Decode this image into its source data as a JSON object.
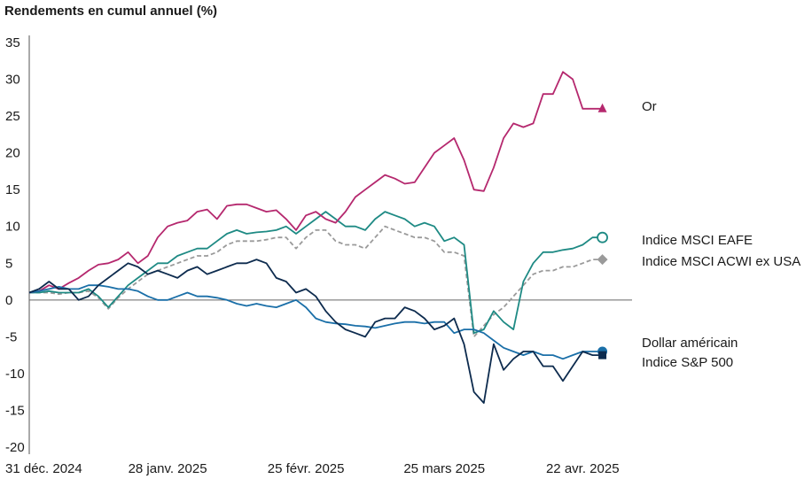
{
  "chart_data": {
    "type": "line",
    "title": "Rendements en cumul annuel (%)",
    "ylim": [
      -20,
      35
    ],
    "yticks": [
      35,
      30,
      25,
      20,
      15,
      10,
      5,
      0,
      -5,
      -10,
      -15,
      -20
    ],
    "xlim": [
      "2024-12-31",
      "2025-05-02"
    ],
    "xticks": [
      {
        "value": "2024-12-31",
        "label": "31 déc. 2024"
      },
      {
        "value": "2025-01-28",
        "label": "28 janv. 2025"
      },
      {
        "value": "2025-02-25",
        "label": "25 févr. 2025"
      },
      {
        "value": "2025-03-25",
        "label": "25 mars 2025"
      },
      {
        "value": "2025-04-22",
        "label": "22 avr. 2025"
      }
    ],
    "series": [
      {
        "name": "Or",
        "color": "#b5286e",
        "dashed": false,
        "marker": "triangle",
        "x": [
          "2024-12-31",
          "2025-01-02",
          "2025-01-04",
          "2025-01-06",
          "2025-01-08",
          "2025-01-10",
          "2025-01-12",
          "2025-01-14",
          "2025-01-16",
          "2025-01-18",
          "2025-01-20",
          "2025-01-22",
          "2025-01-24",
          "2025-01-26",
          "2025-01-28",
          "2025-01-30",
          "2025-02-01",
          "2025-02-03",
          "2025-02-05",
          "2025-02-07",
          "2025-02-09",
          "2025-02-11",
          "2025-02-13",
          "2025-02-15",
          "2025-02-17",
          "2025-02-19",
          "2025-02-21",
          "2025-02-23",
          "2025-02-25",
          "2025-02-27",
          "2025-03-01",
          "2025-03-03",
          "2025-03-05",
          "2025-03-07",
          "2025-03-09",
          "2025-03-11",
          "2025-03-13",
          "2025-03-15",
          "2025-03-17",
          "2025-03-19",
          "2025-03-21",
          "2025-03-23",
          "2025-03-25",
          "2025-03-27",
          "2025-03-29",
          "2025-03-31",
          "2025-04-02",
          "2025-04-04",
          "2025-04-06",
          "2025-04-08",
          "2025-04-10",
          "2025-04-12",
          "2025-04-14",
          "2025-04-16",
          "2025-04-18",
          "2025-04-20",
          "2025-04-22",
          "2025-04-24",
          "2025-04-26"
        ],
        "values": [
          1.0,
          1.2,
          2.0,
          1.5,
          2.3,
          3.0,
          4.0,
          4.8,
          5.0,
          5.5,
          6.5,
          5.0,
          6.0,
          8.5,
          10.0,
          10.5,
          10.8,
          12.0,
          12.3,
          11.0,
          12.8,
          13.0,
          13.0,
          12.5,
          12.0,
          12.2,
          11.0,
          9.5,
          11.5,
          12.0,
          11.0,
          10.5,
          12.0,
          14.0,
          15.0,
          16.0,
          17.0,
          16.5,
          15.8,
          16.0,
          18.0,
          20.0,
          21.0,
          22.0,
          19.0,
          15.0,
          14.8,
          18.0,
          22.0,
          24.0,
          23.5,
          24.0,
          28.0,
          28.0,
          31.0,
          30.0,
          26.0,
          26.0,
          26.0
        ]
      },
      {
        "name": "Indice MSCI EAFE",
        "color": "#1e8a84",
        "dashed": false,
        "marker": "open-circle",
        "x": [
          "2024-12-31",
          "2025-01-02",
          "2025-01-04",
          "2025-01-06",
          "2025-01-08",
          "2025-01-10",
          "2025-01-12",
          "2025-01-14",
          "2025-01-16",
          "2025-01-18",
          "2025-01-20",
          "2025-01-22",
          "2025-01-24",
          "2025-01-26",
          "2025-01-28",
          "2025-01-30",
          "2025-02-01",
          "2025-02-03",
          "2025-02-05",
          "2025-02-07",
          "2025-02-09",
          "2025-02-11",
          "2025-02-13",
          "2025-02-15",
          "2025-02-17",
          "2025-02-19",
          "2025-02-21",
          "2025-02-23",
          "2025-02-25",
          "2025-02-27",
          "2025-03-01",
          "2025-03-03",
          "2025-03-05",
          "2025-03-07",
          "2025-03-09",
          "2025-03-11",
          "2025-03-13",
          "2025-03-15",
          "2025-03-17",
          "2025-03-19",
          "2025-03-21",
          "2025-03-23",
          "2025-03-25",
          "2025-03-27",
          "2025-03-29",
          "2025-03-31",
          "2025-04-02",
          "2025-04-04",
          "2025-04-06",
          "2025-04-08",
          "2025-04-10",
          "2025-04-12",
          "2025-04-14",
          "2025-04-16",
          "2025-04-18",
          "2025-04-20",
          "2025-04-22",
          "2025-04-24",
          "2025-04-26"
        ],
        "values": [
          1.0,
          1.0,
          1.2,
          1.0,
          1.0,
          1.0,
          1.5,
          0.5,
          -1.0,
          0.5,
          2.0,
          3.0,
          4.0,
          5.0,
          5.0,
          6.0,
          6.5,
          7.0,
          7.0,
          8.0,
          9.0,
          9.5,
          9.0,
          9.2,
          9.3,
          9.5,
          10.0,
          9.0,
          10.0,
          11.0,
          12.0,
          11.0,
          10.0,
          10.0,
          9.5,
          11.0,
          12.0,
          11.5,
          11.0,
          10.0,
          10.5,
          10.0,
          8.0,
          8.5,
          7.5,
          -4.5,
          -4.0,
          -1.5,
          -3.0,
          -4.0,
          2.5,
          5.0,
          6.5,
          6.5,
          6.8,
          7.0,
          7.5,
          8.5,
          8.5
        ]
      },
      {
        "name": "Indice MSCI ACWI ex USA",
        "color": "#9a9a9a",
        "dashed": true,
        "marker": "diamond",
        "x": [
          "2024-12-31",
          "2025-01-02",
          "2025-01-04",
          "2025-01-06",
          "2025-01-08",
          "2025-01-10",
          "2025-01-12",
          "2025-01-14",
          "2025-01-16",
          "2025-01-18",
          "2025-01-20",
          "2025-01-22",
          "2025-01-24",
          "2025-01-26",
          "2025-01-28",
          "2025-01-30",
          "2025-02-01",
          "2025-02-03",
          "2025-02-05",
          "2025-02-07",
          "2025-02-09",
          "2025-02-11",
          "2025-02-13",
          "2025-02-15",
          "2025-02-17",
          "2025-02-19",
          "2025-02-21",
          "2025-02-23",
          "2025-02-25",
          "2025-02-27",
          "2025-03-01",
          "2025-03-03",
          "2025-03-05",
          "2025-03-07",
          "2025-03-09",
          "2025-03-11",
          "2025-03-13",
          "2025-03-15",
          "2025-03-17",
          "2025-03-19",
          "2025-03-21",
          "2025-03-23",
          "2025-03-25",
          "2025-03-27",
          "2025-03-29",
          "2025-03-31",
          "2025-04-02",
          "2025-04-04",
          "2025-04-06",
          "2025-04-08",
          "2025-04-10",
          "2025-04-12",
          "2025-04-14",
          "2025-04-16",
          "2025-04-18",
          "2025-04-20",
          "2025-04-22",
          "2025-04-24",
          "2025-04-26"
        ],
        "values": [
          1.0,
          1.0,
          1.0,
          0.8,
          1.0,
          1.0,
          1.2,
          0.3,
          -1.2,
          0.3,
          1.5,
          2.5,
          3.5,
          4.0,
          4.5,
          5.0,
          5.5,
          6.0,
          6.0,
          6.5,
          7.5,
          8.0,
          8.0,
          8.0,
          8.2,
          8.5,
          8.5,
          7.0,
          8.5,
          9.5,
          9.5,
          8.0,
          7.5,
          7.5,
          7.0,
          8.5,
          10.0,
          9.5,
          9.0,
          8.5,
          8.5,
          8.0,
          6.5,
          6.5,
          6.0,
          -5.0,
          -3.5,
          -2.0,
          -1.0,
          0.5,
          2.0,
          3.5,
          4.0,
          4.0,
          4.5,
          4.5,
          5.0,
          5.5,
          5.5
        ]
      },
      {
        "name": "Dollar américain",
        "color": "#1a6fa8",
        "dashed": false,
        "marker": "filled-circle",
        "x": [
          "2024-12-31",
          "2025-01-02",
          "2025-01-04",
          "2025-01-06",
          "2025-01-08",
          "2025-01-10",
          "2025-01-12",
          "2025-01-14",
          "2025-01-16",
          "2025-01-18",
          "2025-01-20",
          "2025-01-22",
          "2025-01-24",
          "2025-01-26",
          "2025-01-28",
          "2025-01-30",
          "2025-02-01",
          "2025-02-03",
          "2025-02-05",
          "2025-02-07",
          "2025-02-09",
          "2025-02-11",
          "2025-02-13",
          "2025-02-15",
          "2025-02-17",
          "2025-02-19",
          "2025-02-21",
          "2025-02-23",
          "2025-02-25",
          "2025-02-27",
          "2025-03-01",
          "2025-03-03",
          "2025-03-05",
          "2025-03-07",
          "2025-03-09",
          "2025-03-11",
          "2025-03-13",
          "2025-03-15",
          "2025-03-17",
          "2025-03-19",
          "2025-03-21",
          "2025-03-23",
          "2025-03-25",
          "2025-03-27",
          "2025-03-29",
          "2025-03-31",
          "2025-04-02",
          "2025-04-04",
          "2025-04-06",
          "2025-04-08",
          "2025-04-10",
          "2025-04-12",
          "2025-04-14",
          "2025-04-16",
          "2025-04-18",
          "2025-04-20",
          "2025-04-22",
          "2025-04-24",
          "2025-04-26"
        ],
        "values": [
          1.0,
          1.2,
          1.5,
          1.8,
          1.5,
          1.5,
          2.0,
          2.0,
          1.8,
          1.5,
          1.5,
          1.2,
          0.5,
          0.0,
          0.0,
          0.5,
          1.0,
          0.5,
          0.5,
          0.3,
          0.0,
          -0.5,
          -0.8,
          -0.5,
          -0.8,
          -1.0,
          -0.5,
          0.0,
          -1.0,
          -2.5,
          -3.0,
          -3.2,
          -3.3,
          -3.5,
          -3.6,
          -3.8,
          -3.5,
          -3.2,
          -3.0,
          -3.0,
          -3.2,
          -3.0,
          -3.0,
          -4.5,
          -4.0,
          -4.0,
          -4.5,
          -5.5,
          -6.5,
          -7.0,
          -7.5,
          -7.0,
          -7.5,
          -7.5,
          -8.0,
          -7.5,
          -7.0,
          -7.0,
          -7.0
        ]
      },
      {
        "name": "Indice S&P 500",
        "color": "#0d2b4e",
        "dashed": false,
        "marker": "filled-square",
        "x": [
          "2024-12-31",
          "2025-01-02",
          "2025-01-04",
          "2025-01-06",
          "2025-01-08",
          "2025-01-10",
          "2025-01-12",
          "2025-01-14",
          "2025-01-16",
          "2025-01-18",
          "2025-01-20",
          "2025-01-22",
          "2025-01-24",
          "2025-01-26",
          "2025-01-28",
          "2025-01-30",
          "2025-02-01",
          "2025-02-03",
          "2025-02-05",
          "2025-02-07",
          "2025-02-09",
          "2025-02-11",
          "2025-02-13",
          "2025-02-15",
          "2025-02-17",
          "2025-02-19",
          "2025-02-21",
          "2025-02-23",
          "2025-02-25",
          "2025-02-27",
          "2025-03-01",
          "2025-03-03",
          "2025-03-05",
          "2025-03-07",
          "2025-03-09",
          "2025-03-11",
          "2025-03-13",
          "2025-03-15",
          "2025-03-17",
          "2025-03-19",
          "2025-03-21",
          "2025-03-23",
          "2025-03-25",
          "2025-03-27",
          "2025-03-29",
          "2025-03-31",
          "2025-04-02",
          "2025-04-04",
          "2025-04-06",
          "2025-04-08",
          "2025-04-10",
          "2025-04-12",
          "2025-04-14",
          "2025-04-16",
          "2025-04-18",
          "2025-04-20",
          "2025-04-22",
          "2025-04-24",
          "2025-04-26"
        ],
        "values": [
          1.0,
          1.5,
          2.5,
          1.5,
          1.5,
          0.0,
          0.5,
          2.0,
          3.0,
          4.0,
          5.0,
          4.5,
          3.5,
          4.0,
          3.5,
          3.0,
          4.0,
          4.5,
          3.5,
          4.0,
          4.5,
          5.0,
          5.0,
          5.5,
          5.0,
          3.0,
          2.5,
          1.0,
          1.5,
          0.5,
          -1.5,
          -3.0,
          -4.0,
          -4.5,
          -5.0,
          -3.0,
          -2.5,
          -2.5,
          -1.0,
          -1.5,
          -2.5,
          -4.0,
          -3.5,
          -2.5,
          -6.0,
          -12.5,
          -14.0,
          -6.0,
          -9.5,
          -8.0,
          -7.0,
          -7.0,
          -9.0,
          -9.0,
          -11.0,
          -9.0,
          -7.0,
          -7.5,
          -7.5
        ]
      }
    ],
    "legend": [
      {
        "label": "Or",
        "color": "#b5286e",
        "marker": "triangle"
      },
      {
        "label": "Indice MSCI EAFE",
        "color": "#1e8a84",
        "marker": "open-circle"
      },
      {
        "label": "Indice MSCI ACWI ex USA",
        "color": "#9a9a9a",
        "marker": "diamond"
      },
      {
        "label": "Dollar américain",
        "color": "#1a6fa8",
        "marker": "filled-circle"
      },
      {
        "label": "Indice S&P 500",
        "color": "#0d2b4e",
        "marker": "filled-square"
      }
    ],
    "legend_placement": "right, at line ends",
    "zero_line": true,
    "grid": false
  }
}
